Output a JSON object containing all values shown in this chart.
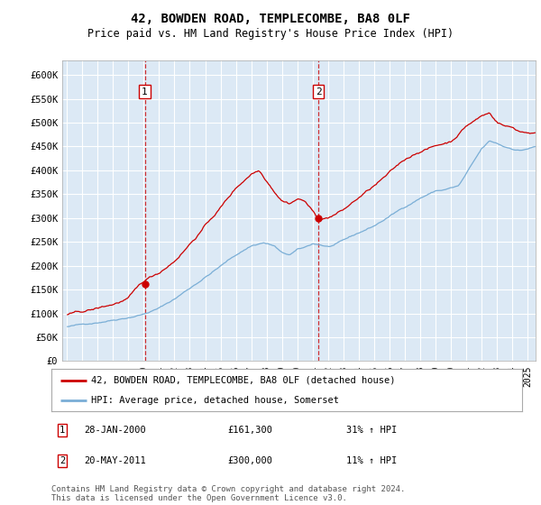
{
  "title": "42, BOWDEN ROAD, TEMPLECOMBE, BA8 0LF",
  "subtitle": "Price paid vs. HM Land Registry's House Price Index (HPI)",
  "bg_color": "#dce9f5",
  "grid_color": "#ffffff",
  "sale1_x": 2000.07,
  "sale1_y": 161300,
  "sale1_label": "1",
  "sale2_x": 2011.38,
  "sale2_y": 300000,
  "sale2_label": "2",
  "sale1_date": "28-JAN-2000",
  "sale1_price": "£161,300",
  "sale1_hpi": "31% ↑ HPI",
  "sale2_date": "20-MAY-2011",
  "sale2_price": "£300,000",
  "sale2_hpi": "11% ↑ HPI",
  "legend_line1": "42, BOWDEN ROAD, TEMPLECOMBE, BA8 0LF (detached house)",
  "legend_line2": "HPI: Average price, detached house, Somerset",
  "footer": "Contains HM Land Registry data © Crown copyright and database right 2024.\nThis data is licensed under the Open Government Licence v3.0.",
  "line_color_red": "#cc0000",
  "line_color_blue": "#7aaed6",
  "marker_box_color": "#cc0000",
  "xlim_start": 1995.0,
  "xlim_end": 2025.5,
  "ylim_top": 630000,
  "yticks": [
    0,
    50000,
    100000,
    150000,
    200000,
    250000,
    300000,
    350000,
    400000,
    450000,
    500000,
    550000,
    600000
  ],
  "ytick_labels": [
    "£0",
    "£50K",
    "£100K",
    "£150K",
    "£200K",
    "£250K",
    "£300K",
    "£350K",
    "£400K",
    "£450K",
    "£500K",
    "£550K",
    "£600K"
  ]
}
